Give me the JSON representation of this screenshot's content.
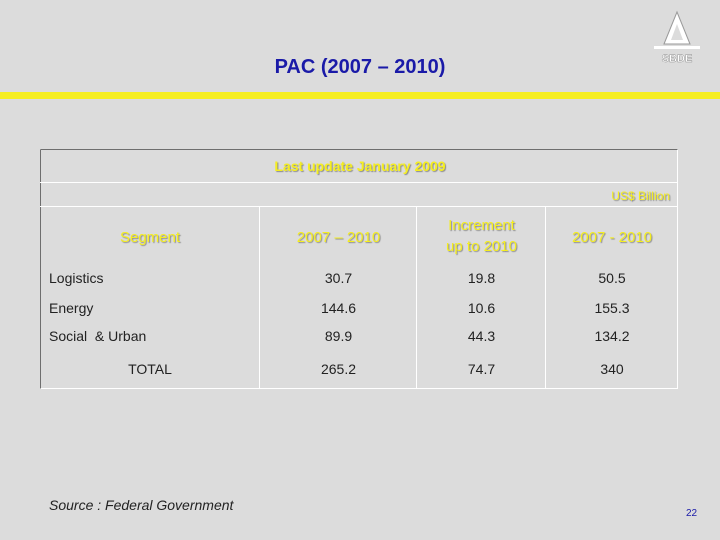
{
  "title": "PAC (2007 – 2010)",
  "logo_text": "SBDE",
  "table": {
    "last_update": "Last update January 2009",
    "unit": "US$ Billion",
    "headers": {
      "segment": "Segment",
      "period": "2007 – 2010",
      "increment_line1": "Increment",
      "increment_line2": "up to 2010",
      "total_period": "2007 - 2010"
    },
    "rows": [
      {
        "label": "Logistics",
        "period": "30.7",
        "increment": "19.8",
        "total": "50.5"
      },
      {
        "label": "Energy",
        "period": "144.6",
        "increment": "10.6",
        "total": "155.3"
      },
      {
        "label": "Social  & Urban",
        "period": "89.9",
        "increment": "44.3",
        "total": "134.2"
      },
      {
        "label": "TOTAL",
        "period": "265.2",
        "increment": "74.7",
        "total": "340"
      }
    ]
  },
  "source": "Source : Federal Government",
  "page_number": "22",
  "colors": {
    "title": "#1a1aa8",
    "accent_yellow": "#f5ee21",
    "background": "#dcdcdc"
  }
}
